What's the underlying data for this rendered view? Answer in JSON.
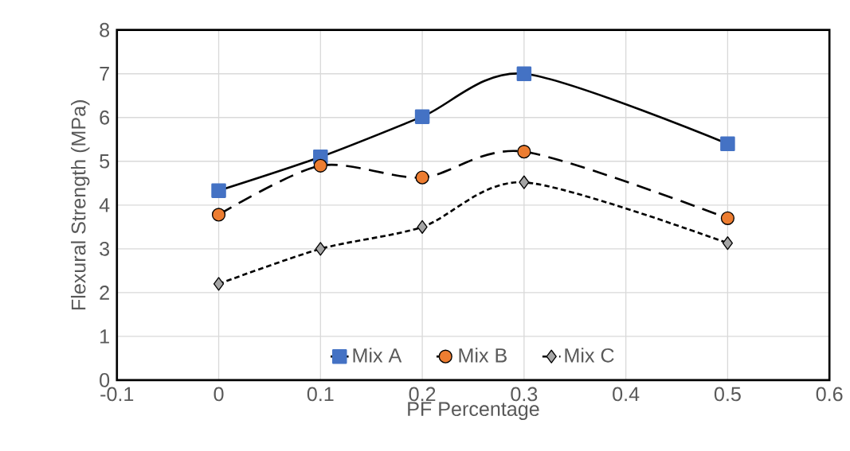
{
  "chart_data": {
    "type": "line",
    "xlabel": "PF Percentage",
    "ylabel": "Flexural Strength (MPa)",
    "x": [
      0,
      0.1,
      0.2,
      0.3,
      0.5
    ],
    "series": [
      {
        "name": "Mix A",
        "color": "#4472c4",
        "marker": "square",
        "line_style": "solid",
        "values": [
          4.33,
          5.1,
          6.02,
          7.0,
          5.4
        ]
      },
      {
        "name": "Mix B",
        "color": "#ed7d31",
        "marker": "circle",
        "line_style": "dashed",
        "values": [
          3.78,
          4.9,
          4.63,
          5.22,
          3.7
        ]
      },
      {
        "name": "Mix C",
        "color": "#a5a5a5",
        "marker": "diamond",
        "line_style": "dotted",
        "values": [
          2.2,
          3.0,
          3.5,
          4.52,
          3.13
        ]
      }
    ],
    "xlim": [
      -0.1,
      0.6
    ],
    "xticks": [
      -0.1,
      0,
      0.1,
      0.2,
      0.3,
      0.4,
      0.5,
      0.6
    ],
    "ylim": [
      0,
      8
    ],
    "yticks": [
      0,
      1,
      2,
      3,
      4,
      5,
      6,
      7,
      8
    ],
    "grid": true,
    "legend": "bottom"
  }
}
